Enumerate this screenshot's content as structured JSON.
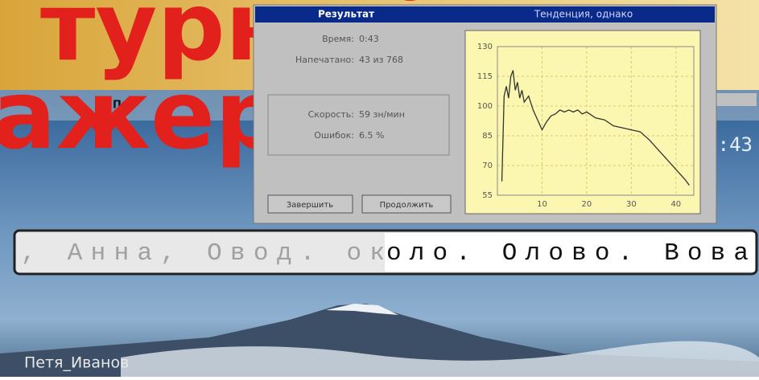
{
  "background_title": {
    "line1": "турный",
    "line2": "ажер"
  },
  "window": {
    "menu": [
      "Пр"
    ],
    "timer": ":43"
  },
  "dialog": {
    "title": "Результат",
    "chart_caption": "Тенденция, однако",
    "stats": [
      {
        "label": "Время:",
        "value": "0:43"
      },
      {
        "label": "Напечатано:",
        "value": "43 из 768"
      }
    ],
    "results": [
      {
        "label": "Скорость:",
        "value": "59 зн/мин"
      },
      {
        "label": "Ошибок:",
        "value": "6.5 %"
      }
    ],
    "buttons": [
      "Завершить",
      "Продолжить"
    ]
  },
  "chart_data": {
    "type": "line",
    "x": [
      1,
      1.5,
      2,
      2.5,
      3,
      3.5,
      4,
      4.5,
      5,
      5.5,
      6,
      7,
      8,
      9,
      10,
      11,
      12,
      13,
      14,
      15,
      16,
      17,
      18,
      19,
      20,
      22,
      24,
      26,
      28,
      30,
      32,
      34,
      36,
      38,
      40,
      42,
      43
    ],
    "values": [
      62,
      105,
      110,
      104,
      115,
      118,
      108,
      112,
      104,
      108,
      102,
      105,
      98,
      93,
      88,
      92,
      95,
      96,
      98,
      97,
      98,
      97,
      98,
      96,
      97,
      94,
      93,
      90,
      89,
      88,
      87,
      83,
      78,
      73,
      68,
      63,
      60
    ],
    "color": "#333333",
    "xlim": [
      0,
      44
    ],
    "ylim": [
      55,
      130
    ],
    "xticks": [
      10,
      20,
      30,
      40
    ],
    "yticks": [
      55,
      70,
      85,
      100,
      115,
      130
    ],
    "grid": true
  },
  "typing": {
    "typed": ", Анна, Овод. ок",
    "pending": "оло. Олово. Вова"
  },
  "user": "Петя_Иванов"
}
